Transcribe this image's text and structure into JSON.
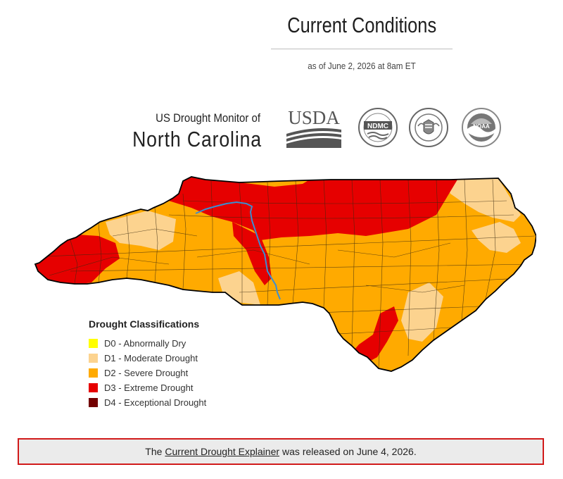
{
  "header": {
    "title": "Current Conditions",
    "as_of": "as of June 2, 2026 at 8am ET"
  },
  "branding": {
    "line1": "US Drought Monitor of",
    "state": "North Carolina",
    "logos": [
      {
        "name": "usda-logo",
        "text": "USDA"
      },
      {
        "name": "ndmc-logo",
        "text": "NDMC"
      },
      {
        "name": "department-of-commerce-seal",
        "text": ""
      },
      {
        "name": "noaa-logo",
        "text": "NOAA"
      }
    ]
  },
  "map": {
    "subject": "North Carolina drought intensity",
    "colors": {
      "d1": "#fcd38f",
      "d2": "#ffaa00",
      "d3": "#e60000",
      "river": "#3b8ed1",
      "county_lines": "#3a2a10",
      "state_outline": "#000000"
    }
  },
  "legend": {
    "title": "Drought Classifications",
    "items": [
      {
        "label": "D0 - Abnormally Dry",
        "color": "#ffff00"
      },
      {
        "label": "D1 - Moderate Drought",
        "color": "#fcd38f"
      },
      {
        "label": "D2 - Severe Drought",
        "color": "#ffaa00"
      },
      {
        "label": "D3 - Extreme Drought",
        "color": "#e60000"
      },
      {
        "label": "D4 - Exceptional Drought",
        "color": "#730000"
      }
    ]
  },
  "notice": {
    "prefix": "The",
    "link_text": "Current Drought Explainer",
    "suffix": "was released on June 4, 2026."
  }
}
